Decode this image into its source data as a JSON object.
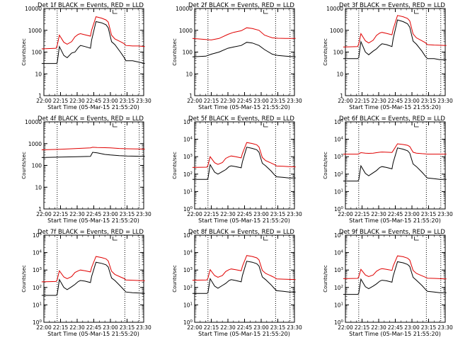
{
  "figure": {
    "start_time_label": "Start Time (05-Mar-15 21:55:20)",
    "ylabel": "Counts/sec",
    "series_colors": {
      "events": "#000000",
      "lld": "#e00000"
    }
  },
  "chart_data": [
    {
      "type": "line",
      "title": "Det 1f BLACK = Events, RED = LLD",
      "xlabel": "Start Time (05-Mar-15 21:55:20)",
      "ylabel": "Counts/sec",
      "yscale": "log",
      "ylim": [
        1,
        10000
      ],
      "ytick_labels": [
        "1",
        "10",
        "100",
        "1000",
        "10000"
      ],
      "xlim": [
        "22:00",
        "23:30"
      ],
      "xtick_labels": [
        "22:00",
        "22:15",
        "22:30",
        "22:45",
        "23:00",
        "23:15",
        "23:30"
      ],
      "markers_dotted": [
        "22:12",
        "23:13",
        "23:26"
      ],
      "x": [
        "21:58",
        "22:11",
        "22:12",
        "22:14",
        "22:18",
        "22:21",
        "22:25",
        "22:28",
        "22:31",
        "22:33",
        "22:37",
        "22:42",
        "22:43",
        "22:47",
        "22:52",
        "22:56",
        "22:58",
        "23:01",
        "23:04",
        "23:09",
        "23:12",
        "23:14",
        "23:20",
        "23:25",
        "23:31"
      ],
      "series": [
        {
          "values": [
            30,
            30,
            32,
            180,
            70,
            55,
            90,
            100,
            160,
            200,
            180,
            150,
            350,
            2500,
            2200,
            1800,
            1300,
            300,
            220,
            100,
            60,
            40,
            40,
            35,
            30
          ]
        },
        {
          "values": [
            140,
            150,
            200,
            600,
            280,
            230,
            300,
            500,
            650,
            700,
            620,
            540,
            1000,
            4200,
            3600,
            3000,
            2400,
            600,
            400,
            300,
            250,
            200,
            190,
            190,
            180
          ]
        }
      ]
    },
    {
      "type": "line",
      "title": "Det 2f BLACK = Events, RED = LLD",
      "xlabel": "Start Time (05-Mar-15 21:55:20)",
      "ylabel": "Counts/sec",
      "yscale": "log",
      "ylim": [
        1,
        10000
      ],
      "ytick_labels": [
        "1",
        "10",
        "100",
        "1000",
        "10000"
      ],
      "xlim": [
        "22:00",
        "23:30"
      ],
      "xtick_labels": [
        "22:00",
        "22:15",
        "22:30",
        "22:45",
        "23:00",
        "23:15",
        "23:30"
      ],
      "markers_dotted": [
        "22:12",
        "23:13",
        "23:26"
      ],
      "x": [
        "21:58",
        "22:10",
        "22:15",
        "22:22",
        "22:30",
        "22:35",
        "22:42",
        "22:47",
        "22:52",
        "22:58",
        "23:03",
        "23:10",
        "23:15",
        "23:22",
        "23:31"
      ],
      "series": [
        {
          "values": [
            60,
            65,
            80,
            100,
            150,
            170,
            200,
            280,
            260,
            200,
            130,
            80,
            70,
            65,
            60
          ]
        },
        {
          "values": [
            420,
            380,
            360,
            420,
            650,
            800,
            950,
            1300,
            1200,
            1000,
            600,
            450,
            430,
            420,
            420
          ]
        }
      ]
    },
    {
      "type": "line",
      "title": "Det 3f BLACK = Events, RED = LLD",
      "xlabel": "Start Time (05-Mar-15 21:55:20)",
      "ylabel": "Counts/sec",
      "yscale": "log",
      "ylim": [
        1,
        10000
      ],
      "ytick_labels": [
        "1",
        "10",
        "100",
        "1000",
        "10000"
      ],
      "xlim": [
        "22:00",
        "23:30"
      ],
      "xtick_labels": [
        "22:00",
        "22:15",
        "22:30",
        "22:45",
        "23:00",
        "23:15",
        "23:30"
      ],
      "markers_dotted": [
        "22:12",
        "23:13",
        "23:26"
      ],
      "x": [
        "21:58",
        "22:11",
        "22:12",
        "22:14",
        "22:18",
        "22:21",
        "22:25",
        "22:28",
        "22:31",
        "22:33",
        "22:37",
        "22:42",
        "22:43",
        "22:47",
        "22:52",
        "22:56",
        "22:58",
        "23:01",
        "23:04",
        "23:09",
        "23:12",
        "23:14",
        "23:20",
        "23:25",
        "23:31"
      ],
      "series": [
        {
          "values": [
            50,
            50,
            55,
            300,
            100,
            75,
            110,
            140,
            200,
            240,
            220,
            180,
            400,
            3000,
            2500,
            2000,
            1400,
            320,
            230,
            110,
            65,
            50,
            50,
            45,
            45
          ]
        },
        {
          "values": [
            170,
            180,
            230,
            700,
            330,
            260,
            350,
            580,
            750,
            800,
            720,
            620,
            1100,
            4800,
            4200,
            3500,
            2700,
            680,
            450,
            330,
            270,
            220,
            210,
            205,
            200
          ]
        }
      ]
    },
    {
      "type": "line",
      "title": "Det 4f BLACK = Events, RED = LLD",
      "xlabel": "Start Time (05-Mar-15 21:55:20)",
      "ylabel": "Counts/sec",
      "yscale": "log",
      "ylim": [
        1,
        10000
      ],
      "ytick_labels": [
        "1",
        "10",
        "100",
        "1000",
        "10000"
      ],
      "xlim": [
        "22:00",
        "23:30"
      ],
      "xtick_labels": [
        "22:00",
        "22:15",
        "22:30",
        "22:45",
        "23:00",
        "23:15",
        "23:30"
      ],
      "markers_dotted": [
        "22:12",
        "23:13",
        "23:26"
      ],
      "x": [
        "21:58",
        "22:15",
        "22:30",
        "22:42",
        "22:44",
        "22:48",
        "22:55",
        "23:00",
        "23:08",
        "23:15",
        "23:31"
      ],
      "series": [
        {
          "values": [
            230,
            240,
            250,
            260,
            400,
            380,
            320,
            300,
            280,
            270,
            260
          ]
        },
        {
          "values": [
            520,
            550,
            600,
            640,
            680,
            660,
            650,
            640,
            600,
            580,
            560
          ]
        }
      ]
    },
    {
      "type": "line",
      "title": "Det 5f BLACK = Events, RED = LLD",
      "xlabel": "Start Time (05-Mar-15 21:55:20)",
      "ylabel": "Counts/sec",
      "yscale": "log",
      "ylim": [
        1,
        100000
      ],
      "ytick_labels": [
        "10^0",
        "10^1",
        "10^2",
        "10^3",
        "10^4",
        "10^5"
      ],
      "xlim": [
        "22:00",
        "23:30"
      ],
      "xtick_labels": [
        "22:00",
        "22:15",
        "22:30",
        "22:45",
        "23:00",
        "23:15",
        "23:30"
      ],
      "markers_dotted": [
        "22:12",
        "23:13",
        "23:26"
      ],
      "x": [
        "21:58",
        "22:11",
        "22:12",
        "22:14",
        "22:18",
        "22:21",
        "22:25",
        "22:28",
        "22:31",
        "22:33",
        "22:37",
        "22:42",
        "22:43",
        "22:47",
        "22:52",
        "22:56",
        "22:58",
        "23:01",
        "23:04",
        "23:09",
        "23:12",
        "23:14",
        "23:20",
        "23:25",
        "23:31"
      ],
      "series": [
        {
          "values": [
            50,
            50,
            55,
            350,
            130,
            100,
            140,
            180,
            270,
            300,
            270,
            230,
            500,
            3500,
            3000,
            2500,
            1800,
            420,
            300,
            150,
            90,
            70,
            65,
            60,
            60
          ]
        },
        {
          "values": [
            240,
            250,
            320,
            1000,
            450,
            360,
            460,
            800,
            1000,
            1100,
            1000,
            850,
            1500,
            6500,
            5700,
            4800,
            3600,
            900,
            600,
            430,
            350,
            290,
            280,
            270,
            260
          ]
        }
      ]
    },
    {
      "type": "line",
      "title": "Det 6f BLACK = Events, RED = LLD",
      "xlabel": "Start Time (05-Mar-15 21:55:20)",
      "ylabel": "Counts/sec",
      "yscale": "log",
      "ylim": [
        1,
        100000
      ],
      "ytick_labels": [
        "10^0",
        "10^1",
        "10^2",
        "10^3",
        "10^4",
        "10^5"
      ],
      "xlim": [
        "22:00",
        "23:30"
      ],
      "xtick_labels": [
        "22:00",
        "22:15",
        "22:30",
        "22:45",
        "23:00",
        "23:15",
        "23:30"
      ],
      "markers_dotted": [
        "22:12",
        "23:13",
        "23:26"
      ],
      "x": [
        "21:58",
        "22:11",
        "22:12",
        "22:14",
        "22:18",
        "22:21",
        "22:25",
        "22:28",
        "22:31",
        "22:33",
        "22:37",
        "22:42",
        "22:43",
        "22:47",
        "22:52",
        "22:56",
        "22:58",
        "23:01",
        "23:04",
        "23:09",
        "23:12",
        "23:14",
        "23:20",
        "23:25",
        "23:31"
      ],
      "series": [
        {
          "values": [
            40,
            40,
            45,
            300,
            110,
            80,
            120,
            160,
            240,
            270,
            240,
            200,
            450,
            3200,
            2700,
            2200,
            1600,
            380,
            270,
            130,
            80,
            60,
            55,
            50,
            50
          ]
        },
        {
          "values": [
            1400,
            1400,
            1450,
            1700,
            1600,
            1550,
            1600,
            1700,
            1800,
            1850,
            1800,
            1750,
            2200,
            5500,
            5000,
            4500,
            3800,
            1800,
            1600,
            1500,
            1450,
            1400,
            1400,
            1400,
            1400
          ]
        }
      ]
    },
    {
      "type": "line",
      "title": "Det 7f BLACK = Events, RED = LLD",
      "xlabel": "Start Time (05-Mar-15 21:55:20)",
      "ylabel": "Counts/sec",
      "yscale": "log",
      "ylim": [
        1,
        100000
      ],
      "ytick_labels": [
        "10^0",
        "10^1",
        "10^2",
        "10^3",
        "10^4",
        "10^5"
      ],
      "xlim": [
        "22:00",
        "23:30"
      ],
      "xtick_labels": [
        "22:00",
        "22:15",
        "22:30",
        "22:45",
        "23:00",
        "23:15",
        "23:30"
      ],
      "markers_dotted": [
        "22:12",
        "23:13",
        "23:26"
      ],
      "x": [
        "21:58",
        "22:11",
        "22:12",
        "22:14",
        "22:18",
        "22:21",
        "22:25",
        "22:28",
        "22:31",
        "22:33",
        "22:37",
        "22:42",
        "22:43",
        "22:47",
        "22:52",
        "22:56",
        "22:58",
        "23:01",
        "23:04",
        "23:09",
        "23:12",
        "23:14",
        "23:20",
        "23:25",
        "23:31"
      ],
      "series": [
        {
          "values": [
            35,
            35,
            40,
            280,
            100,
            75,
            110,
            150,
            220,
            250,
            230,
            190,
            420,
            2800,
            2400,
            2000,
            1500,
            350,
            250,
            120,
            75,
            55,
            50,
            48,
            45
          ]
        },
        {
          "values": [
            210,
            220,
            280,
            900,
            400,
            320,
            420,
            720,
            900,
            1000,
            900,
            780,
            1400,
            6000,
            5200,
            4400,
            3300,
            850,
            560,
            400,
            330,
            270,
            260,
            250,
            240
          ]
        }
      ]
    },
    {
      "type": "line",
      "title": "Det 8f BLACK = Events, RED = LLD",
      "xlabel": "Start Time (05-Mar-15 21:55:20)",
      "ylabel": "Counts/sec",
      "yscale": "log",
      "ylim": [
        1,
        100000
      ],
      "ytick_labels": [
        "10^0",
        "10^1",
        "10^2",
        "10^3",
        "10^4",
        "10^5"
      ],
      "xlim": [
        "22:00",
        "23:30"
      ],
      "xtick_labels": [
        "22:00",
        "22:15",
        "22:30",
        "22:45",
        "23:00",
        "23:15",
        "23:30"
      ],
      "markers_dotted": [
        "22:12",
        "23:13",
        "23:26"
      ],
      "x": [
        "21:58",
        "22:11",
        "22:12",
        "22:14",
        "22:18",
        "22:21",
        "22:25",
        "22:28",
        "22:31",
        "22:33",
        "22:37",
        "22:42",
        "22:43",
        "22:47",
        "22:52",
        "22:56",
        "22:58",
        "23:01",
        "23:04",
        "23:09",
        "23:12",
        "23:14",
        "23:20",
        "23:25",
        "23:31"
      ],
      "series": [
        {
          "values": [
            45,
            45,
            50,
            320,
            120,
            90,
            130,
            170,
            250,
            280,
            250,
            210,
            470,
            3200,
            2800,
            2300,
            1700,
            400,
            280,
            140,
            85,
            65,
            60,
            55,
            55
          ]
        },
        {
          "values": [
            260,
            270,
            340,
            1050,
            480,
            380,
            480,
            820,
            1050,
            1150,
            1050,
            900,
            1600,
            6800,
            6000,
            5000,
            3800,
            950,
            640,
            460,
            370,
            310,
            300,
            290,
            280
          ]
        }
      ]
    },
    {
      "type": "line",
      "title": "Det 9f BLACK = Events, RED = LLD",
      "xlabel": "Start Time (05-Mar-15 21:55:20)",
      "ylabel": "Counts/sec",
      "yscale": "log",
      "ylim": [
        1,
        100000
      ],
      "ytick_labels": [
        "10^0",
        "10^1",
        "10^2",
        "10^3",
        "10^4",
        "10^5"
      ],
      "xlim": [
        "22:00",
        "23:30"
      ],
      "xtick_labels": [
        "22:00",
        "22:15",
        "22:30",
        "22:45",
        "23:00",
        "23:15",
        "23:30"
      ],
      "markers_dotted": [
        "22:12",
        "23:13",
        "23:26"
      ],
      "x": [
        "21:58",
        "22:11",
        "22:12",
        "22:14",
        "22:18",
        "22:21",
        "22:25",
        "22:28",
        "22:31",
        "22:33",
        "22:37",
        "22:42",
        "22:43",
        "22:47",
        "22:52",
        "22:56",
        "22:58",
        "23:01",
        "23:04",
        "23:09",
        "23:12",
        "23:14",
        "23:20",
        "23:25",
        "23:31"
      ],
      "series": [
        {
          "values": [
            40,
            40,
            45,
            300,
            110,
            85,
            120,
            160,
            230,
            260,
            240,
            200,
            440,
            3000,
            2600,
            2100,
            1600,
            380,
            260,
            130,
            80,
            60,
            55,
            50,
            50
          ]
        },
        {
          "values": [
            320,
            330,
            400,
            1100,
            520,
            420,
            520,
            850,
            1100,
            1200,
            1100,
            950,
            1650,
            6500,
            5800,
            4800,
            3700,
            950,
            640,
            470,
            390,
            340,
            330,
            320,
            310
          ]
        }
      ]
    }
  ]
}
